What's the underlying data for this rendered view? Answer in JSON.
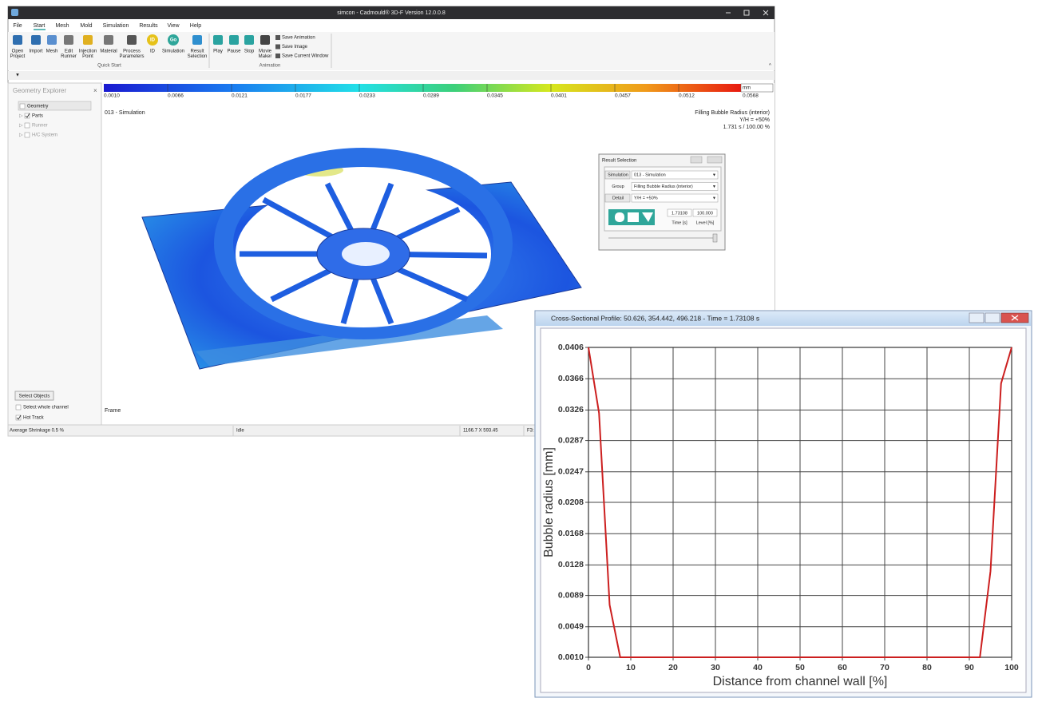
{
  "app": {
    "title": "simcon - Cadmould® 3D-F Version 12.0.0.8",
    "menu": [
      "File",
      "Start",
      "Mesh",
      "Mold",
      "Simulation",
      "Results",
      "View",
      "Help"
    ],
    "ribbon": {
      "quick_start": {
        "label": "Quick Start",
        "buttons": [
          {
            "label": [
              "Open",
              "Project"
            ]
          },
          {
            "label": [
              "Import"
            ]
          },
          {
            "label": [
              "Mesh"
            ]
          },
          {
            "label": [
              "Edit",
              "Runner"
            ]
          },
          {
            "label": [
              "Injection",
              "Point"
            ]
          },
          {
            "label": [
              "Material"
            ]
          },
          {
            "label": [
              "Process",
              "Parameters"
            ]
          },
          {
            "label": [
              "ID"
            ],
            "icon": "ID"
          },
          {
            "label": [
              "Simulation"
            ],
            "icon": "Go"
          },
          {
            "label": [
              "Result",
              "Selection"
            ]
          }
        ]
      },
      "animation": {
        "label": "Animation",
        "buttons": [
          {
            "label": [
              "Play"
            ]
          },
          {
            "label": [
              "Pause"
            ]
          },
          {
            "label": [
              "Stop"
            ]
          },
          {
            "label": [
              "Movie",
              "Maker"
            ]
          }
        ],
        "options": [
          "Save Animation",
          "Save Image",
          "Save Current Window"
        ]
      }
    },
    "explorer": {
      "title": "Geometry Explorer",
      "tree": [
        "Geometry",
        "Parts",
        "Runner",
        "H/C System"
      ],
      "button": "Select Objects",
      "checks": [
        "Select whole channel",
        "Hot Track"
      ]
    },
    "colorbar": {
      "unit": "mm",
      "labels": [
        "0.0010",
        "0.0066",
        "0.0121",
        "0.0177",
        "0.0233",
        "0.0289",
        "0.0345",
        "0.0401",
        "0.0457",
        "0.0512",
        "0.0568"
      ]
    },
    "viewport": {
      "simulation": "013 - Simulation",
      "result": "Filling Bubble Radius (interior)",
      "level": "Y/H = +50%",
      "time": "1.731 s  /  100.00 %",
      "frame": "Frame"
    },
    "status": [
      "Average Shrinkage 0.5 %",
      "Idle",
      "1166.7 X 593.45",
      "F3:"
    ],
    "dialog": {
      "title": "Result Selection",
      "rows": [
        {
          "key": "Simulation",
          "value": "013 - Simulation"
        },
        {
          "key": "Group",
          "value": "Filling Bubble Radius (interior)"
        },
        {
          "key": "Detail",
          "value": "Y/H = +50%"
        }
      ],
      "time": "1.73108",
      "level": "100.000",
      "time_label": "Time [s]",
      "level_label": "Level [%]"
    }
  },
  "profile_window": {
    "title": "Cross-Sectional Profile: 50.626, 354.442, 496.218  -  Time = 1.73108 s"
  },
  "chart_data": {
    "type": "line",
    "x_label": "Distance from channel wall [%]",
    "y_label": "Bubble radius [mm]",
    "x": [
      0,
      2.5,
      5,
      7.5,
      92.5,
      95,
      97.5,
      100
    ],
    "values": [
      0.0406,
      0.0322,
      0.0077,
      0.001,
      0.001,
      0.012,
      0.036,
      0.0406
    ],
    "color": "#cc1f1f",
    "xlim": [
      0,
      100
    ],
    "xticks": [
      0,
      10,
      20,
      30,
      40,
      50,
      60,
      70,
      80,
      90,
      100
    ],
    "ylim": [
      0.001,
      0.0406
    ],
    "yticks": [
      {
        "value": 0.001,
        "label": "0.0010"
      },
      0.0049,
      0.0089,
      0.0128,
      0.0168,
      0.0208,
      0.0247,
      0.0287,
      0.0326,
      0.0366,
      0.0406
    ],
    "grid": true
  }
}
